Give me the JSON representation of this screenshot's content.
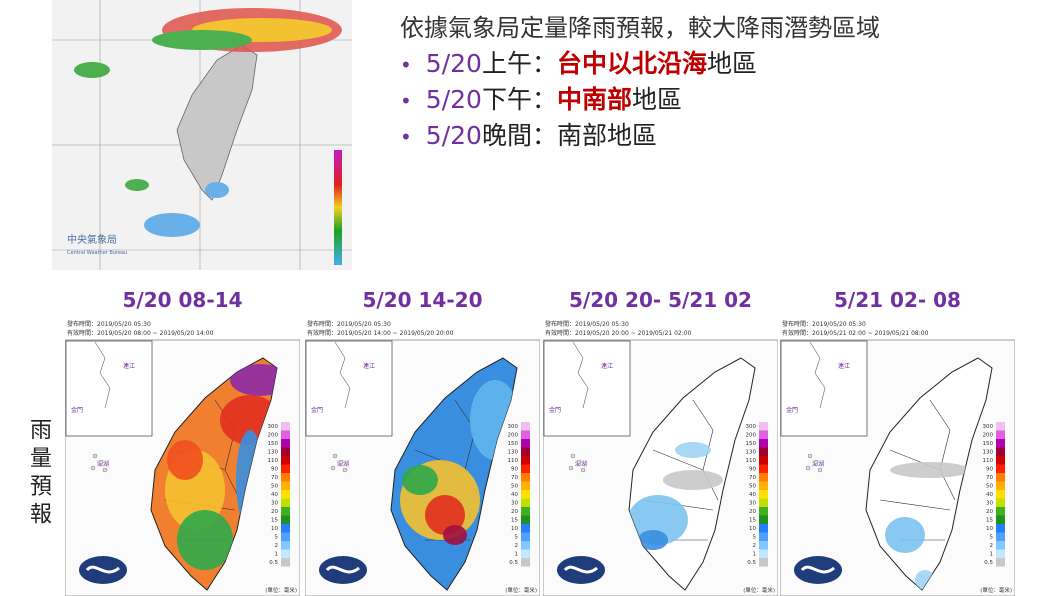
{
  "radar": {
    "agency": "中央氣象局",
    "agency_en": "Central Weather Bureau"
  },
  "summary": {
    "heading": "依據氣象局定量降雨預報，較大降雨潛勢區域",
    "bullets": [
      {
        "date": "5/20",
        "period": "上午：",
        "highlight": "台中以北沿海",
        "suffix": "地區"
      },
      {
        "date": "5/20",
        "period": "下午：",
        "highlight": "中南部",
        "suffix": "地區"
      },
      {
        "date": "5/20",
        "period": "晚間：南部地區"
      }
    ]
  },
  "side_label": "雨量預報",
  "panels": [
    {
      "title": "5/20 08-14",
      "issued": "發布時間：2019/05/20 05:30",
      "valid": "有效時間：2019/05/20 08:00 ~ 2019/05/20 14:00"
    },
    {
      "title": "5/20 14-20",
      "issued": "發布時間：2019/05/20 05:30",
      "valid": "有效時間：2019/05/20 14:00 ~ 2019/05/20 20:00"
    },
    {
      "title": "5/20 20- 5/21 02",
      "issued": "發布時間：2019/05/20 05:30",
      "valid": "有效時間：2019/05/20 20:00 ~ 2019/05/21 02:00"
    },
    {
      "title": "5/21 02- 08",
      "issued": "發布時間：2019/05/20 05:30",
      "valid": "有效時間：2019/05/21 02:00 ~ 2019/05/21 08:00"
    }
  ],
  "places": {
    "matsu": "連江",
    "kinmen": "金門",
    "penghu": "澎湖"
  },
  "legend": {
    "labels": [
      "300",
      "200",
      "150",
      "130",
      "110",
      "90",
      "70",
      "50",
      "40",
      "30",
      "20",
      "15",
      "10",
      "5",
      "2",
      "1",
      "0.5"
    ],
    "unit": "(單位：毫米)"
  }
}
